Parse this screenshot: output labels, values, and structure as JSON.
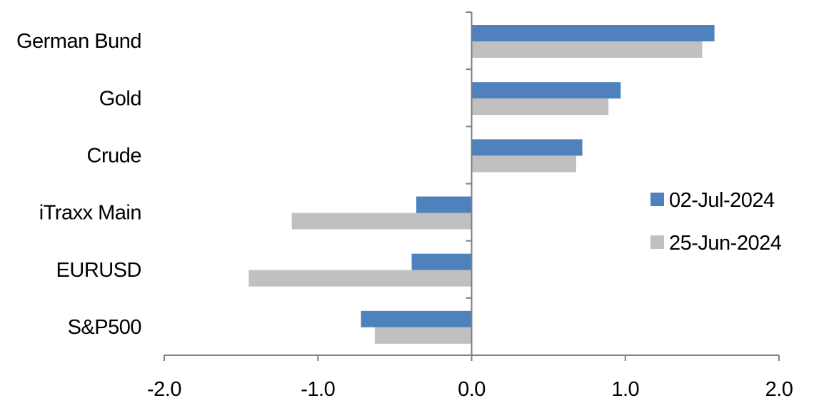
{
  "chart_data": {
    "type": "bar",
    "orientation": "horizontal",
    "categories": [
      "German Bund",
      "Gold",
      "Crude",
      "iTraxx Main",
      "EURUSD",
      "S&P500"
    ],
    "series": [
      {
        "name": "02-Jul-2024",
        "color": "#4f81bd",
        "values": [
          1.58,
          0.97,
          0.72,
          -0.36,
          -0.39,
          -0.72
        ]
      },
      {
        "name": "25-Jun-2024",
        "color": "#c0c0c0",
        "values": [
          1.5,
          0.89,
          0.68,
          -1.17,
          -1.45,
          -0.63
        ]
      }
    ],
    "xlim": [
      -2.0,
      2.0
    ],
    "xticks": [
      "-2.0",
      "-1.0",
      "0.0",
      "1.0",
      "2.0"
    ],
    "title": "",
    "xlabel": "",
    "ylabel": "",
    "grid": false,
    "legend_position": "right"
  }
}
